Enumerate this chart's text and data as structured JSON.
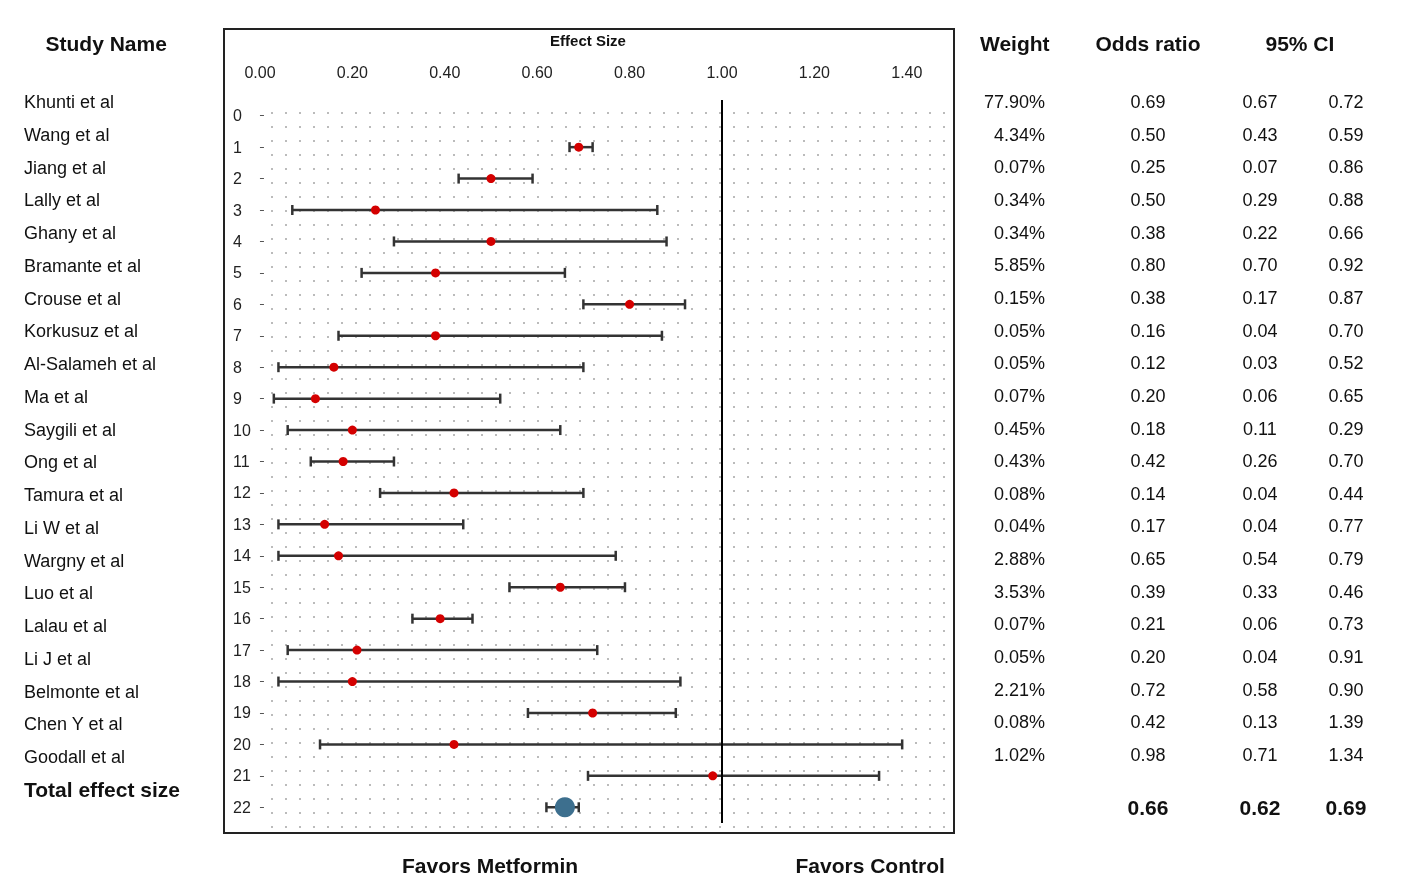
{
  "chart_data": {
    "type": "scatter",
    "orientation": "horizontal",
    "xlabel": "Effect Size",
    "categories": [
      "0",
      "1",
      "2",
      "3",
      "4",
      "5",
      "6",
      "7",
      "8",
      "9",
      "10",
      "11",
      "12",
      "13",
      "14",
      "15",
      "16",
      "17",
      "18",
      "19",
      "20",
      "21",
      "22"
    ],
    "xlim": [
      -0.08,
      1.5
    ],
    "xticks": [
      {
        "value": 0,
        "label": "0.00"
      },
      {
        "value": 0.2,
        "label": "0.20"
      },
      {
        "value": 0.4,
        "label": "0.40"
      },
      {
        "value": 0.6,
        "label": "0.60"
      },
      {
        "value": 0.8,
        "label": "0.80"
      },
      {
        "value": 1,
        "label": "1.00"
      },
      {
        "value": 1.2,
        "label": "1.20"
      },
      {
        "value": 1.4,
        "label": "1.40"
      }
    ],
    "marker": "circle",
    "series": [
      {
        "color": "#d40000",
        "values": [
          null,
          0.69,
          0.5,
          0.25,
          0.5,
          0.38,
          0.8,
          0.38,
          0.16,
          0.12,
          0.2,
          0.18,
          0.42,
          0.14,
          0.17,
          0.65,
          0.39,
          0.21,
          0.2,
          0.72,
          0.42,
          0.98,
          null
        ],
        "errors": [
          null,
          [
            0.67,
            0.72
          ],
          [
            0.43,
            0.59
          ],
          [
            0.07,
            0.86
          ],
          [
            0.29,
            0.88
          ],
          [
            0.22,
            0.66
          ],
          [
            0.7,
            0.92
          ],
          [
            0.17,
            0.87
          ],
          [
            0.04,
            0.7
          ],
          [
            0.03,
            0.52
          ],
          [
            0.06,
            0.65
          ],
          [
            0.11,
            0.29
          ],
          [
            0.26,
            0.7
          ],
          [
            0.04,
            0.44
          ],
          [
            0.04,
            0.77
          ],
          [
            0.54,
            0.79
          ],
          [
            0.33,
            0.46
          ],
          [
            0.06,
            0.73
          ],
          [
            0.04,
            0.91
          ],
          [
            0.58,
            0.9
          ],
          [
            0.13,
            1.39
          ],
          [
            0.71,
            1.34
          ],
          null
        ]
      },
      {
        "color": "#3d6f8e",
        "values": [
          null,
          null,
          null,
          null,
          null,
          null,
          null,
          null,
          null,
          null,
          null,
          null,
          null,
          null,
          null,
          null,
          null,
          null,
          null,
          null,
          null,
          null,
          0.66
        ],
        "errors": [
          null,
          null,
          null,
          null,
          null,
          null,
          null,
          null,
          null,
          null,
          null,
          null,
          null,
          null,
          null,
          null,
          null,
          null,
          null,
          null,
          null,
          null,
          [
            0.62,
            0.69
          ]
        ]
      }
    ],
    "ref_lines": [
      {
        "axis": "x",
        "value": 1,
        "color": "#000000"
      }
    ],
    "annotations": [
      "Study Name",
      "Weight",
      "Odds ratio",
      "95% CI",
      "Favors Metformin",
      "Favors Control",
      "Khunti et al",
      "Wang et al",
      "Jiang et al",
      "Lally et al",
      "Ghany et al",
      "Bramante et al",
      "Crouse et al",
      "Korkusuz et al",
      "Al-Salameh et al",
      "Ma et al",
      "Saygili et al",
      "Ong et al",
      "Tamura et al",
      "Li W et al",
      "Wargny et al",
      "Luo et al",
      "Lalau et al",
      "Li J et al",
      "Belmonte et al",
      "Chen Y et al",
      "Goodall et al",
      "Total effect size",
      "77.90%",
      "4.34%",
      "0.07%",
      "0.34%",
      "0.34%",
      "5.85%",
      "0.15%",
      "0.05%",
      "0.05%",
      "0.07%",
      "0.45%",
      "0.43%",
      "0.08%",
      "0.04%",
      "2.88%",
      "3.53%",
      "0.07%",
      "0.05%",
      "2.21%",
      "0.08%",
      "1.02%",
      "0.69",
      "0.50",
      "0.25",
      "0.50",
      "0.38",
      "0.80",
      "0.38",
      "0.16",
      "0.12",
      "0.20",
      "0.18",
      "0.42",
      "0.14",
      "0.17",
      "0.65",
      "0.39",
      "0.21",
      "0.20",
      "0.72",
      "0.42",
      "0.98",
      "0.66",
      "0.67",
      "0.43",
      "0.07",
      "0.29",
      "0.22",
      "0.70",
      "0.17",
      "0.04",
      "0.03",
      "0.06",
      "0.11",
      "0.26",
      "0.04",
      "0.04",
      "0.54",
      "0.33",
      "0.06",
      "0.04",
      "0.58",
      "0.13",
      "0.71",
      "0.62",
      "0.72",
      "0.59",
      "0.86",
      "0.88",
      "0.66",
      "0.92",
      "0.87",
      "0.70",
      "0.52",
      "0.65",
      "0.29",
      "0.70",
      "0.44",
      "0.77",
      "0.79",
      "0.46",
      "0.73",
      "0.91",
      "0.90",
      "1.39",
      "1.34",
      "0.69"
    ]
  }
}
